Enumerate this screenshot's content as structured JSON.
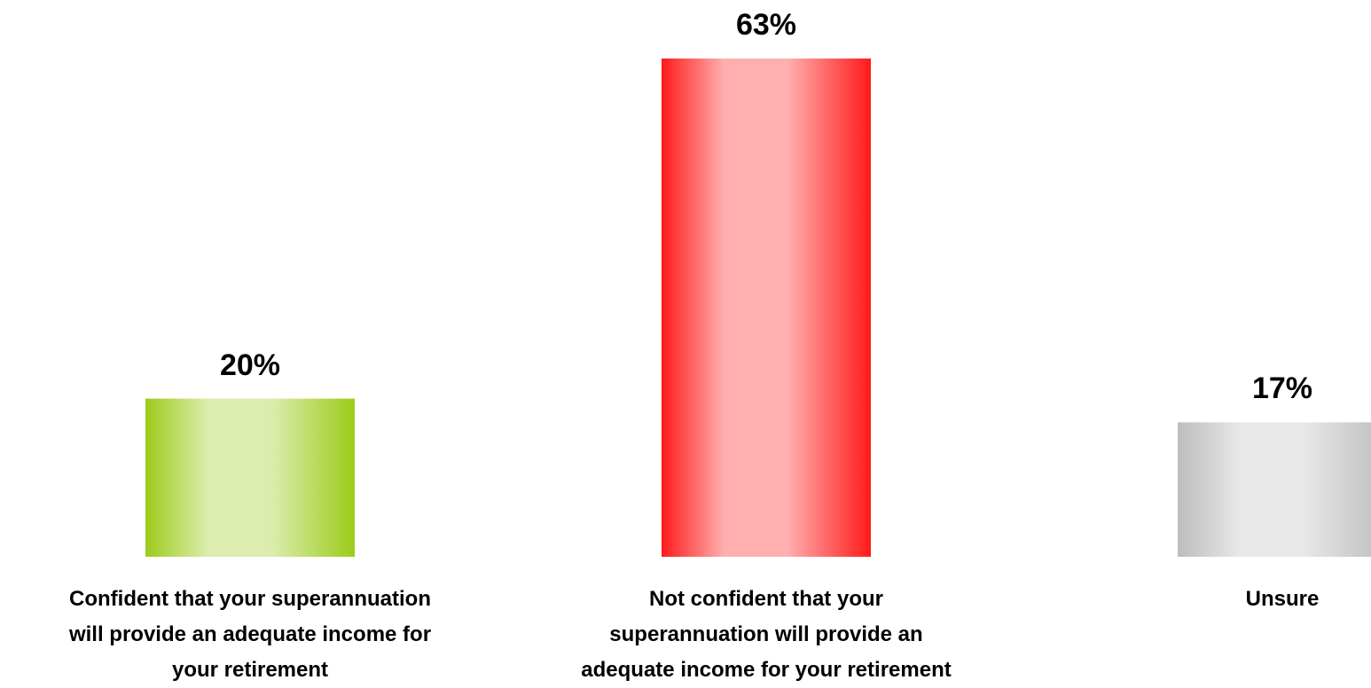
{
  "chart_data": {
    "type": "bar",
    "categories": [
      "Confident that your superannuation will provide an adequate income for your retirement",
      "Not confident that your superannuation will provide an adequate income for your retirement",
      "Unsure"
    ],
    "values": [
      20,
      63,
      17
    ],
    "value_labels": [
      "20%",
      "63%",
      "17%"
    ],
    "colors": [
      "#9ccc1a",
      "#ff1a1a",
      "#bdbdbd"
    ]
  }
}
